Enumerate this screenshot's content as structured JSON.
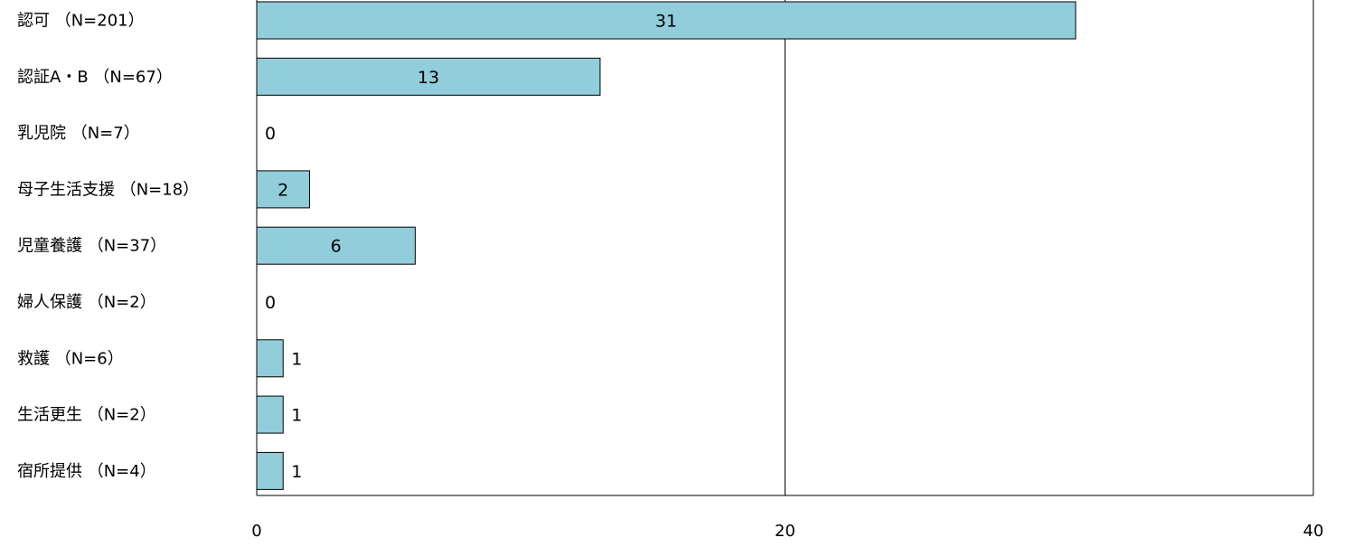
{
  "chart_data": {
    "type": "bar",
    "orientation": "horizontal",
    "categories": [
      "認可 （N=201）",
      "認証A・B （N=67）",
      "乳児院 （N=7）",
      "母子生活支援 （N=18）",
      "児童養護 （N=37）",
      "婦人保護 （N=2）",
      "救護 （N=6）",
      "生活更生 （N=2）",
      "宿所提供 （N=4）"
    ],
    "values": [
      31,
      13,
      0,
      2,
      6,
      0,
      1,
      1,
      1
    ],
    "x_ticks": [
      "0",
      "20",
      "40"
    ],
    "xlim": [
      0,
      40
    ],
    "grid": true,
    "legend": "none",
    "title": "",
    "xlabel": "",
    "ylabel": "",
    "bar_color": "#92cddc",
    "bar_edge_color": "#000000"
  }
}
